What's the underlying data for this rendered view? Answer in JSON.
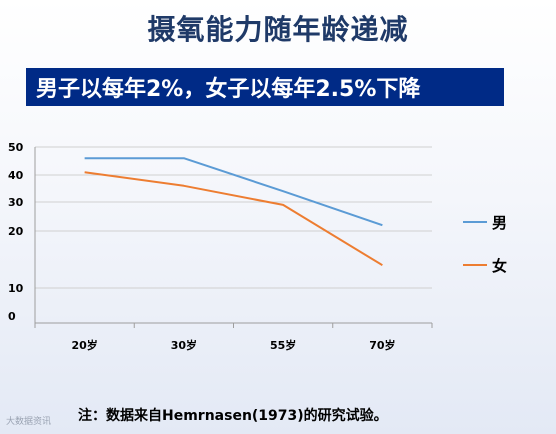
{
  "title": "摄氧能力随年龄递减",
  "subtitle": "男子以每年2%，女子以每年2.5%下降",
  "footnote": "注：数据来自Hemrnasen(1973)的研究试验。",
  "watermark": "大数据资讯",
  "chart_data": {
    "type": "line",
    "categories": [
      "20岁",
      "30岁",
      "55岁",
      "70岁"
    ],
    "y_ticks": [
      0,
      10,
      20,
      30,
      40,
      50
    ],
    "ylim": [
      0,
      50
    ],
    "grid": true,
    "legend_position": "right",
    "series": [
      {
        "name": "男",
        "color": "#5b9bd5",
        "values": [
          46,
          46,
          34,
          22
        ]
      },
      {
        "name": "女",
        "color": "#ed7d31",
        "values": [
          41,
          36,
          29,
          14
        ]
      }
    ]
  }
}
